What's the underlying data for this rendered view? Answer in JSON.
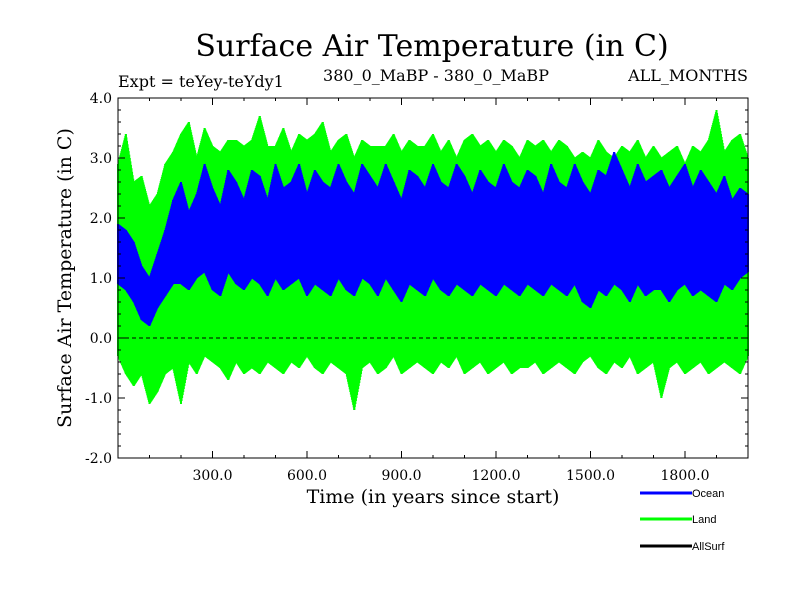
{
  "chart_data": {
    "type": "line",
    "title": "Surface Air Temperature (in C)",
    "subtitle_left": "Expt = teYey-teYdy1",
    "subtitle_center": "380_0_MaBP - 380_0_MaBP",
    "subtitle_right": "ALL_MONTHS",
    "xlabel": "Time (in years since start)",
    "ylabel": "Surface Air Temperature (in C)",
    "xlim": [
      0,
      2000
    ],
    "ylim": [
      -2.0,
      4.0
    ],
    "x_ticks": [
      300,
      600,
      900,
      1200,
      1500,
      1800
    ],
    "x_tick_labels": [
      "300.0",
      "600.0",
      "900.0",
      "1200.0",
      "1500.0",
      "1800.0"
    ],
    "y_ticks": [
      -2.0,
      -1.0,
      0.0,
      1.0,
      2.0,
      3.0,
      4.0
    ],
    "y_tick_labels": [
      "-2.0",
      "-1.0",
      "0.0",
      "1.0",
      "2.0",
      "3.0",
      "4.0"
    ],
    "zero_line": true,
    "series": [
      {
        "name": "Land",
        "color": "#00ff00",
        "x": [
          0,
          25,
          50,
          75,
          100,
          125,
          150,
          175,
          200,
          225,
          250,
          275,
          300,
          325,
          350,
          375,
          400,
          425,
          450,
          475,
          500,
          525,
          550,
          575,
          600,
          625,
          650,
          675,
          700,
          725,
          750,
          775,
          800,
          825,
          850,
          875,
          900,
          925,
          950,
          975,
          1000,
          1025,
          1050,
          1075,
          1100,
          1125,
          1150,
          1175,
          1200,
          1225,
          1250,
          1275,
          1300,
          1325,
          1350,
          1375,
          1400,
          1425,
          1450,
          1475,
          1500,
          1525,
          1550,
          1575,
          1600,
          1625,
          1650,
          1675,
          1700,
          1725,
          1750,
          1775,
          1800,
          1825,
          1850,
          1875,
          1900,
          1925,
          1950,
          1975,
          2000
        ],
        "upper": [
          2.9,
          3.4,
          2.6,
          2.7,
          2.2,
          2.4,
          2.9,
          3.1,
          3.4,
          3.6,
          3.0,
          3.5,
          3.2,
          3.1,
          3.3,
          3.3,
          3.2,
          3.3,
          3.7,
          3.2,
          3.2,
          3.5,
          3.1,
          3.4,
          3.3,
          3.4,
          3.6,
          3.1,
          3.3,
          3.4,
          3.0,
          3.3,
          3.2,
          3.2,
          3.2,
          3.4,
          3.1,
          3.3,
          3.2,
          3.2,
          3.4,
          3.1,
          3.3,
          3.0,
          3.3,
          3.4,
          3.2,
          3.3,
          3.1,
          3.3,
          3.2,
          3.0,
          3.3,
          3.2,
          3.3,
          3.1,
          3.3,
          3.2,
          3.0,
          3.1,
          3.0,
          3.3,
          3.1,
          3.0,
          3.2,
          3.1,
          3.3,
          3.0,
          3.2,
          3.0,
          3.1,
          3.2,
          2.9,
          3.2,
          3.1,
          3.3,
          3.8,
          3.1,
          3.3,
          3.4,
          3.0
        ],
        "lower": [
          -0.3,
          -0.6,
          -0.8,
          -0.6,
          -1.1,
          -0.9,
          -0.6,
          -0.5,
          -1.1,
          -0.4,
          -0.6,
          -0.3,
          -0.4,
          -0.5,
          -0.7,
          -0.4,
          -0.6,
          -0.5,
          -0.6,
          -0.4,
          -0.5,
          -0.6,
          -0.4,
          -0.5,
          -0.3,
          -0.5,
          -0.6,
          -0.4,
          -0.5,
          -0.6,
          -1.2,
          -0.5,
          -0.4,
          -0.6,
          -0.5,
          -0.3,
          -0.6,
          -0.5,
          -0.4,
          -0.5,
          -0.6,
          -0.4,
          -0.5,
          -0.3,
          -0.6,
          -0.5,
          -0.4,
          -0.6,
          -0.5,
          -0.4,
          -0.6,
          -0.5,
          -0.5,
          -0.4,
          -0.6,
          -0.5,
          -0.4,
          -0.5,
          -0.6,
          -0.4,
          -0.3,
          -0.5,
          -0.6,
          -0.4,
          -0.5,
          -0.3,
          -0.6,
          -0.5,
          -0.4,
          -1.0,
          -0.5,
          -0.4,
          -0.6,
          -0.5,
          -0.4,
          -0.6,
          -0.5,
          -0.4,
          -0.5,
          -0.6,
          -0.3
        ]
      },
      {
        "name": "Ocean",
        "color": "#0000ff",
        "x": [
          0,
          25,
          50,
          75,
          100,
          125,
          150,
          175,
          200,
          225,
          250,
          275,
          300,
          325,
          350,
          375,
          400,
          425,
          450,
          475,
          500,
          525,
          550,
          575,
          600,
          625,
          650,
          675,
          700,
          725,
          750,
          775,
          800,
          825,
          850,
          875,
          900,
          925,
          950,
          975,
          1000,
          1025,
          1050,
          1075,
          1100,
          1125,
          1150,
          1175,
          1200,
          1225,
          1250,
          1275,
          1300,
          1325,
          1350,
          1375,
          1400,
          1425,
          1450,
          1475,
          1500,
          1525,
          1550,
          1575,
          1600,
          1625,
          1650,
          1675,
          1700,
          1725,
          1750,
          1775,
          1800,
          1825,
          1850,
          1875,
          1900,
          1925,
          1950,
          1975,
          2000
        ],
        "upper": [
          1.9,
          1.8,
          1.6,
          1.2,
          1.0,
          1.4,
          1.8,
          2.3,
          2.6,
          2.1,
          2.4,
          2.9,
          2.5,
          2.2,
          2.8,
          2.6,
          2.3,
          2.8,
          2.7,
          2.3,
          2.9,
          2.5,
          2.6,
          2.9,
          2.4,
          2.8,
          2.6,
          2.5,
          2.9,
          2.6,
          2.4,
          2.9,
          2.7,
          2.5,
          2.9,
          2.6,
          2.3,
          2.8,
          2.7,
          2.5,
          2.9,
          2.6,
          2.5,
          2.9,
          2.7,
          2.4,
          2.8,
          2.6,
          2.5,
          2.9,
          2.6,
          2.5,
          2.8,
          2.7,
          2.4,
          2.9,
          2.6,
          2.5,
          2.9,
          2.6,
          2.4,
          2.8,
          2.7,
          3.1,
          2.8,
          2.5,
          2.9,
          2.6,
          2.7,
          2.8,
          2.5,
          2.7,
          2.9,
          2.5,
          2.8,
          2.6,
          2.4,
          2.7,
          2.3,
          2.5,
          2.4
        ],
        "lower": [
          0.9,
          0.8,
          0.6,
          0.3,
          0.2,
          0.5,
          0.7,
          0.9,
          0.9,
          0.8,
          1.0,
          1.1,
          0.8,
          0.7,
          1.1,
          0.9,
          0.8,
          1.0,
          0.9,
          0.7,
          1.0,
          0.8,
          0.9,
          1.0,
          0.7,
          0.9,
          0.8,
          0.7,
          1.0,
          0.8,
          0.7,
          1.0,
          0.9,
          0.7,
          1.0,
          0.8,
          0.6,
          0.9,
          0.8,
          0.7,
          1.0,
          0.8,
          0.7,
          0.9,
          0.8,
          0.7,
          0.9,
          0.8,
          0.7,
          0.9,
          0.8,
          0.7,
          0.9,
          0.8,
          0.7,
          0.9,
          0.8,
          0.7,
          0.9,
          0.6,
          0.5,
          0.8,
          0.7,
          0.9,
          0.8,
          0.6,
          0.9,
          0.7,
          0.8,
          0.8,
          0.6,
          0.8,
          0.9,
          0.7,
          0.8,
          0.7,
          0.6,
          0.9,
          0.8,
          1.0,
          1.1
        ]
      },
      {
        "name": "AllSurf",
        "color": "#000000",
        "x": [
          0,
          2000
        ],
        "upper": [
          0.0,
          0.0
        ],
        "lower": [
          0.0,
          0.0
        ]
      }
    ],
    "legend": {
      "placement": "bottom-right",
      "entries": [
        {
          "name": "Ocean",
          "color": "#0000ff"
        },
        {
          "name": "Land",
          "color": "#00ff00"
        },
        {
          "name": "AllSurf",
          "color": "#000000"
        }
      ]
    }
  }
}
